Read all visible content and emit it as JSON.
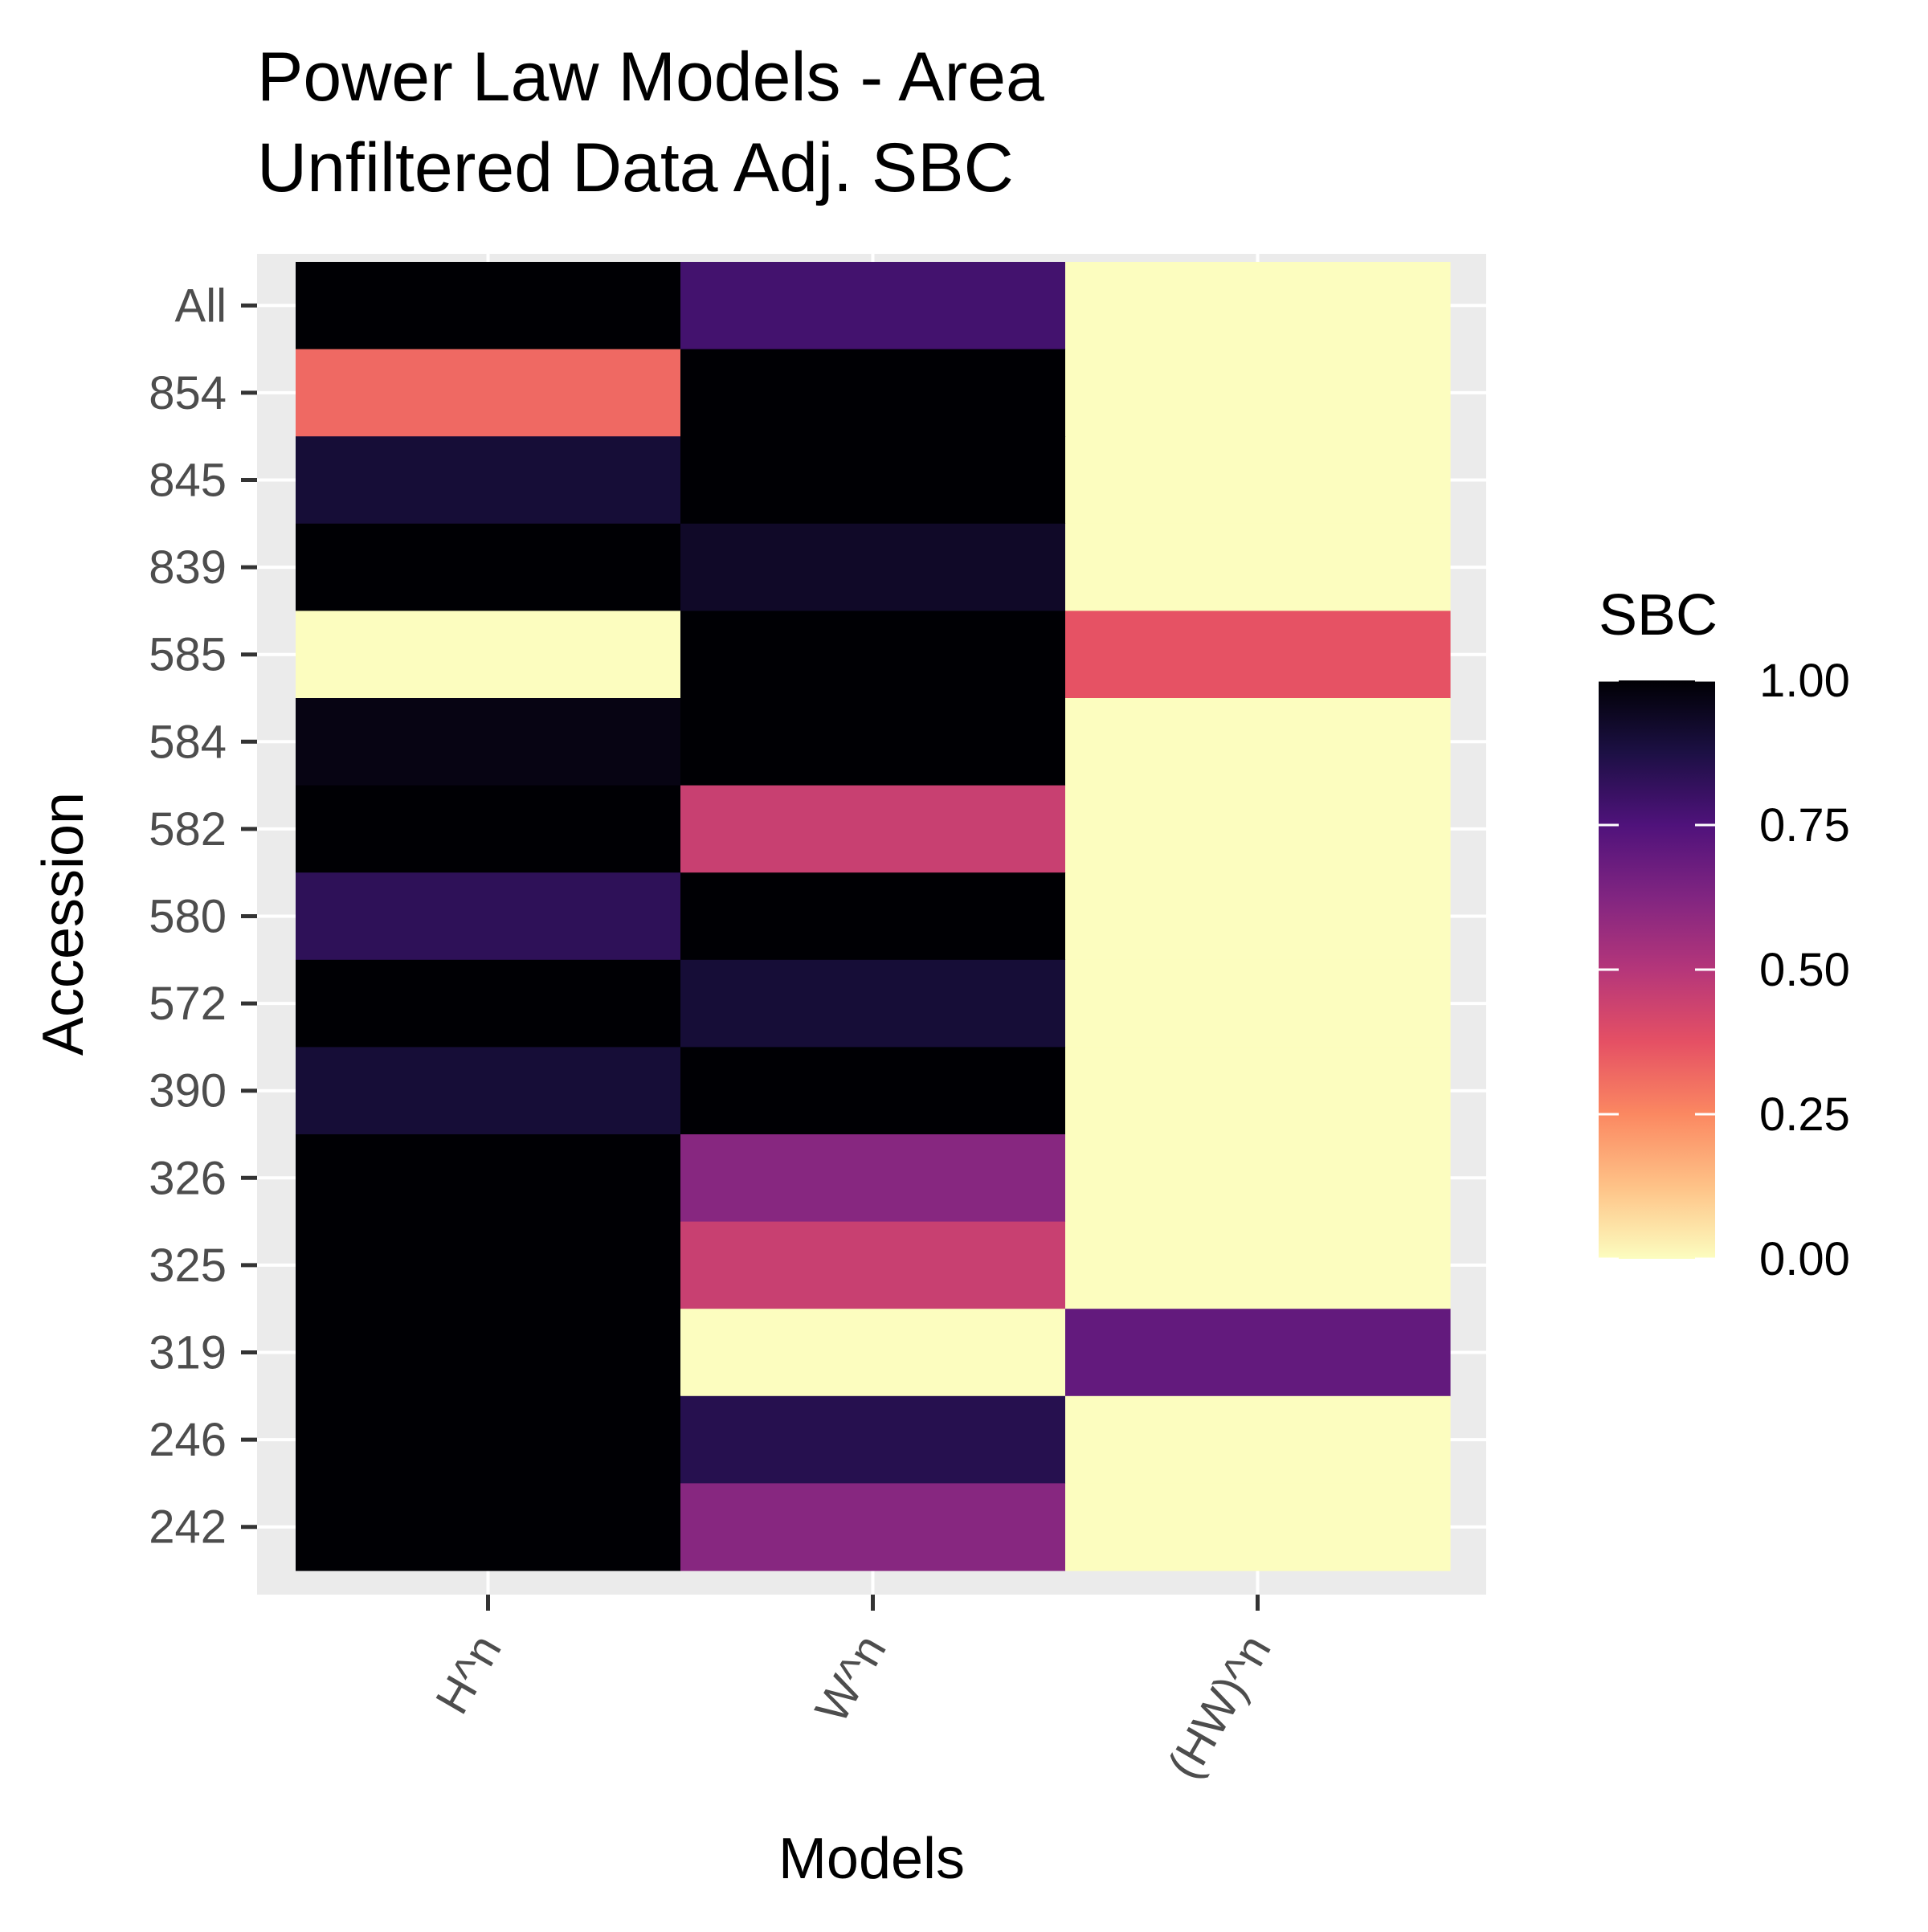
{
  "chart_data": {
    "type": "heatmap",
    "title": [
      "Power Law Models - Area",
      "Unfiltered Data Adj. SBC"
    ],
    "xlabel": "Models",
    "ylabel": "Accession",
    "x_categories": [
      "H^n",
      "W^n",
      "(HW)^n"
    ],
    "y_categories": [
      "All",
      "854",
      "845",
      "839",
      "585",
      "584",
      "582",
      "580",
      "572",
      "390",
      "326",
      "325",
      "319",
      "246",
      "242"
    ],
    "values": [
      [
        1.0,
        0.78,
        0.0
      ],
      [
        0.32,
        1.0,
        0.0
      ],
      [
        0.9,
        1.0,
        0.0
      ],
      [
        1.0,
        0.93,
        0.0
      ],
      [
        0.0,
        1.0,
        0.37
      ],
      [
        0.97,
        1.0,
        0.0
      ],
      [
        1.0,
        0.45,
        0.0
      ],
      [
        0.83,
        1.0,
        0.0
      ],
      [
        1.0,
        0.9,
        0.0
      ],
      [
        0.9,
        1.0,
        0.0
      ],
      [
        1.0,
        0.61,
        0.0
      ],
      [
        1.0,
        0.45,
        0.0
      ],
      [
        1.0,
        0.0,
        0.7
      ],
      [
        1.0,
        0.85,
        0.0
      ],
      [
        1.0,
        0.61,
        0.0
      ]
    ],
    "legend": {
      "title": "SBC",
      "ticks": [
        "1.00",
        "0.75",
        "0.50",
        "0.25",
        "0.00"
      ],
      "tick_values": [
        1.0,
        0.75,
        0.5,
        0.25,
        0.0
      ],
      "range": [
        0,
        1
      ],
      "placement": "right",
      "palette": "magma (reversed)"
    },
    "colors": {
      "panel_background": "#ebebeb",
      "grid": "#ffffff",
      "tick_text": "#4d4d4d"
    }
  }
}
